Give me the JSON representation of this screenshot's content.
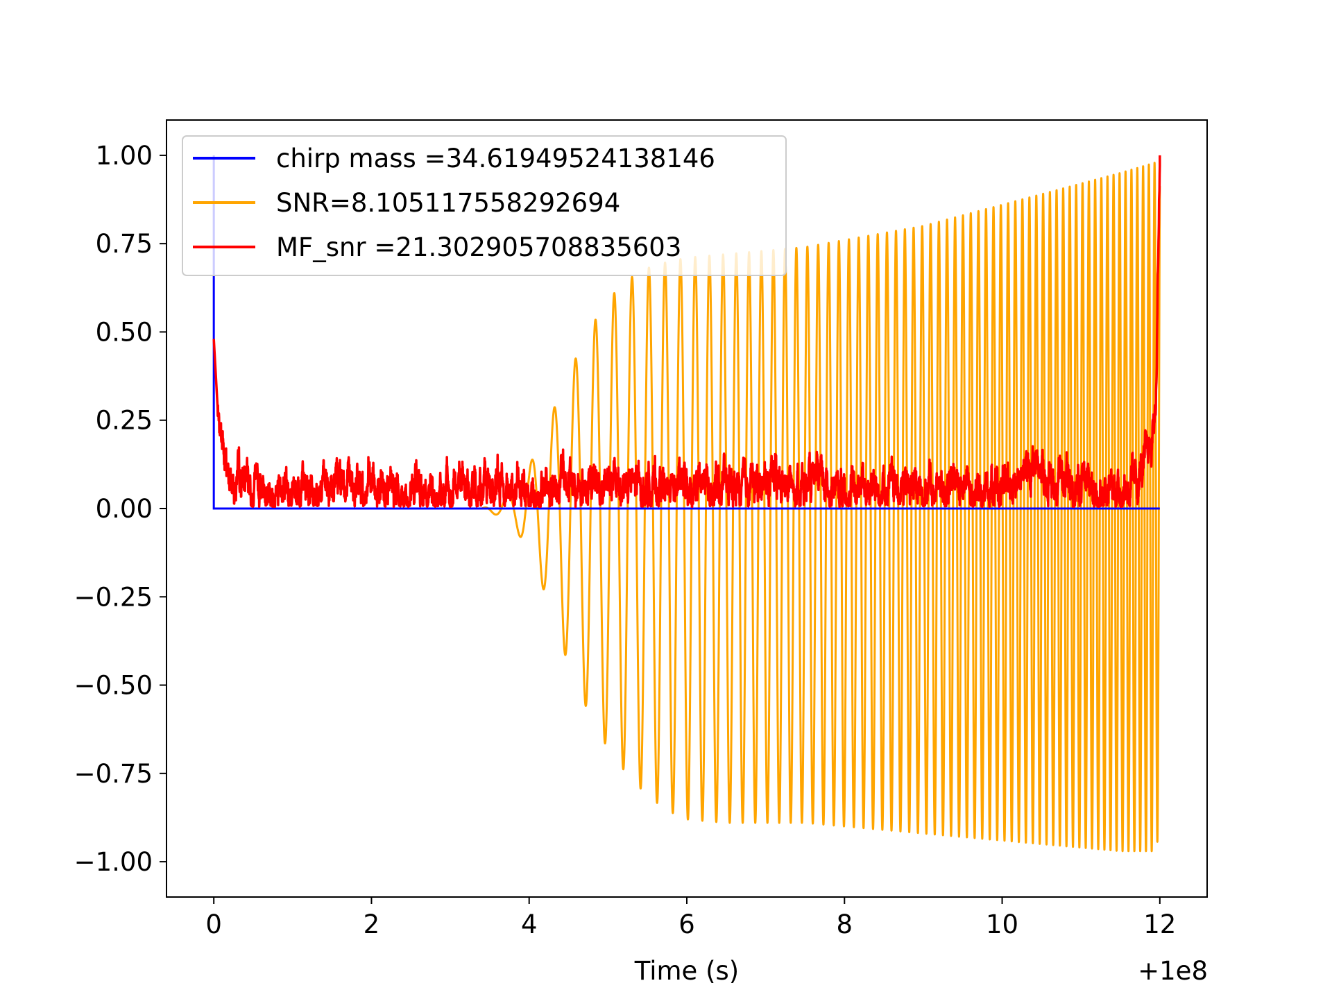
{
  "chart_data": {
    "type": "line",
    "xlabel": "Time (s)",
    "ylabel": "",
    "xlim": [
      -0.6,
      12.6
    ],
    "ylim": [
      -1.1,
      1.1
    ],
    "x_offset_text": "+1e8",
    "xticks": [
      0,
      2,
      4,
      6,
      8,
      10,
      12
    ],
    "xtick_labels": [
      "0",
      "2",
      "4",
      "6",
      "8",
      "10",
      "12"
    ],
    "yticks": [
      1.0,
      0.75,
      0.5,
      0.25,
      0.0,
      -0.25,
      -0.5,
      -0.75,
      -1.0
    ],
    "ytick_labels": [
      "1.00",
      "0.75",
      "0.50",
      "0.25",
      "0.00",
      "−0.25",
      "−0.50",
      "−0.75",
      "−1.00"
    ],
    "grid": false,
    "legend_position": "top-left",
    "series": [
      {
        "name": "chirp mass =34.61949524138146",
        "color": "#0000ff",
        "x": [
          0.0,
          0.0,
          0.0,
          12.0
        ],
        "y": [
          0.0,
          1.0,
          0.0,
          0.0
        ]
      },
      {
        "name": "SNR=8.105117558292694",
        "color": "#ffa500",
        "envelope": {
          "x": [
            0.0,
            3.4,
            3.6,
            3.8,
            4.0,
            4.2,
            4.4,
            4.6,
            4.8,
            5.0,
            5.2,
            5.4,
            5.6,
            5.8,
            6.0,
            6.5,
            7.0,
            7.5,
            8.0,
            8.5,
            9.0,
            9.5,
            10.0,
            10.5,
            11.0,
            11.5,
            11.95,
            12.0
          ],
          "upper": [
            0.0,
            0.0,
            0.02,
            0.05,
            0.12,
            0.22,
            0.33,
            0.43,
            0.52,
            0.59,
            0.64,
            0.67,
            0.69,
            0.7,
            0.71,
            0.72,
            0.73,
            0.74,
            0.76,
            0.78,
            0.8,
            0.83,
            0.86,
            0.89,
            0.92,
            0.95,
            0.98,
            1.0
          ],
          "lower": [
            0.0,
            0.0,
            -0.02,
            -0.05,
            -0.12,
            -0.24,
            -0.38,
            -0.5,
            -0.6,
            -0.68,
            -0.74,
            -0.79,
            -0.83,
            -0.86,
            -0.88,
            -0.89,
            -0.89,
            -0.89,
            -0.9,
            -0.91,
            -0.92,
            -0.93,
            -0.94,
            -0.95,
            -0.96,
            -0.97,
            -0.97,
            -0.9
          ]
        },
        "oscillation_start_frequency_hz": 3.0,
        "oscillation_end_frequency_hz": 14.0
      },
      {
        "name": "MF_snr =21.302905708835603",
        "color": "#ff0000",
        "x": [
          0.0,
          0.02,
          0.05,
          0.1,
          0.15,
          0.2,
          0.3,
          0.45,
          0.6,
          0.8,
          1.0,
          1.5,
          2.0,
          2.5,
          3.0,
          3.5,
          4.0,
          4.5,
          5.0,
          5.5,
          6.0,
          6.5,
          7.0,
          7.5,
          8.0,
          8.5,
          9.0,
          9.5,
          10.0,
          10.3,
          10.45,
          10.6,
          11.0,
          11.5,
          11.7,
          11.8,
          11.9,
          11.95,
          12.0
        ],
        "y": [
          0.48,
          0.4,
          0.28,
          0.2,
          0.12,
          0.08,
          0.07,
          0.08,
          0.07,
          0.06,
          0.05,
          0.06,
          0.06,
          0.05,
          0.05,
          0.07,
          0.06,
          0.07,
          0.07,
          0.06,
          0.07,
          0.06,
          0.07,
          0.07,
          0.06,
          0.06,
          0.06,
          0.06,
          0.07,
          0.1,
          0.14,
          0.07,
          0.06,
          0.06,
          0.07,
          0.12,
          0.2,
          0.3,
          1.0
        ]
      }
    ]
  }
}
